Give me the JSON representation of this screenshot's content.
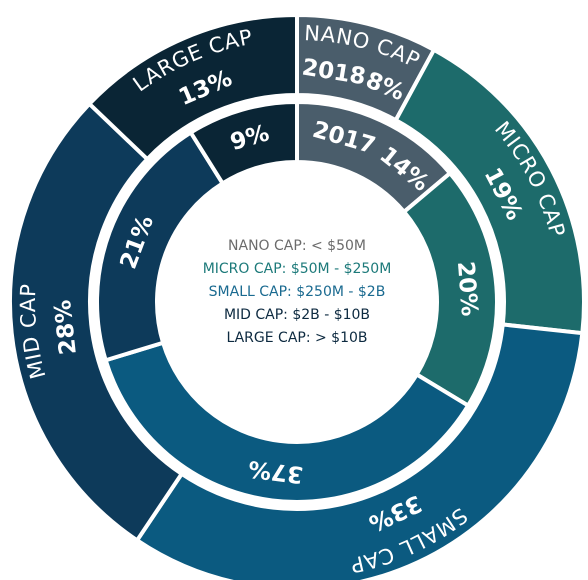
{
  "chart_data": {
    "type": "donut",
    "categories": [
      "NANO CAP",
      "MICRO CAP",
      "SMALL CAP",
      "MID CAP",
      "LARGE CAP"
    ],
    "colors": [
      "#4a5d6b",
      "#1d6b6b",
      "#0b5a80",
      "#0d3a5a",
      "#0a2535"
    ],
    "series": [
      {
        "name": "2018",
        "values": [
          8,
          19,
          33,
          28,
          13
        ],
        "value_labels": [
          "8%",
          "19%",
          "33%",
          "28%",
          "13%"
        ]
      },
      {
        "name": "2017",
        "values": [
          14,
          20,
          37,
          21,
          9
        ],
        "value_labels": [
          "14%",
          "20%",
          "37%",
          "21%",
          "9%"
        ]
      }
    ],
    "center_text": [
      "NANO CAP: < $50M",
      "MICRO CAP: $50M - $250M",
      "SMALL CAP: $250M - $2B",
      "MID CAP: $2B - $10B",
      "LARGE CAP: > $10B"
    ],
    "center_text_colors": [
      "#6b6b6b",
      "#1d7a7a",
      "#1a6a90",
      "#0d2a40",
      "#0d2a40"
    ]
  }
}
